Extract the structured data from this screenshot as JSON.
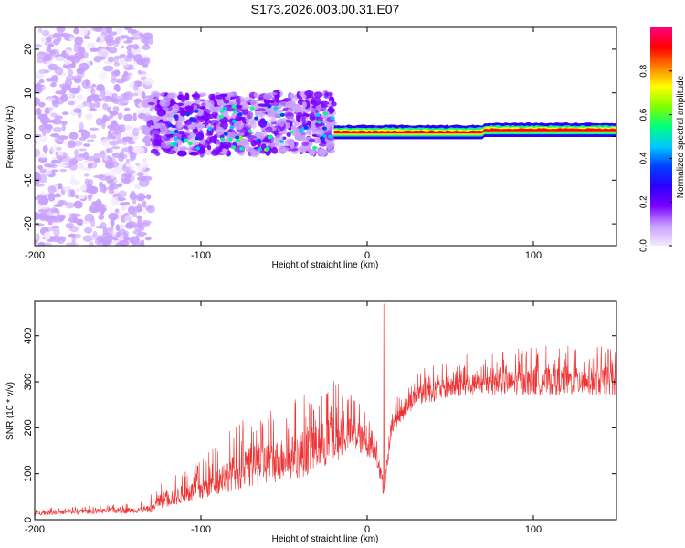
{
  "figure": {
    "title": "S173.2026.003.00.31.E07"
  },
  "chart_data": [
    {
      "type": "heatmap",
      "name": "spectrogram",
      "xlabel": "Height of straight line (km)",
      "ylabel": "Frequency (Hz)",
      "xlim": [
        -200,
        150
      ],
      "ylim": [
        -25,
        25
      ],
      "xticks": [
        -200,
        -100,
        0,
        100
      ],
      "yticks": [
        -20,
        -10,
        0,
        10,
        20
      ],
      "colorbar": {
        "label": "Normalized spectral amplitude",
        "range": [
          0.0,
          1.0
        ],
        "ticks": [
          0.0,
          0.2,
          0.4,
          0.6,
          0.8
        ],
        "tick_labels": [
          "0.0",
          "0.2",
          "0.4",
          "0.6",
          "0.8"
        ],
        "colors": [
          "#f3e8ff",
          "#c8a0ff",
          "#7a00ff",
          "#2a00ff",
          "#0040ff",
          "#00c8ff",
          "#00ff80",
          "#80ff00",
          "#ffff00",
          "#ff8000",
          "#ff0000",
          "#ff0080"
        ]
      },
      "description_bands": [
        {
          "x_from": -200,
          "x_to": -130,
          "y_center": 0,
          "y_spread": 25,
          "amplitude": 0.1
        },
        {
          "x_from": -130,
          "x_to": -20,
          "y_center": 3,
          "y_spread": 7,
          "amplitude": 0.18
        },
        {
          "x_from": -20,
          "x_to": 150,
          "y_center": 1,
          "y_spread": 1,
          "amplitude": 0.9
        }
      ]
    },
    {
      "type": "line",
      "name": "snr",
      "xlabel": "Height of straight line (km)",
      "ylabel": "SNR (10 * v/v)",
      "xlim": [
        -200,
        150
      ],
      "ylim": [
        0,
        475
      ],
      "xticks": [
        -200,
        -100,
        0,
        100
      ],
      "yticks": [
        0,
        100,
        200,
        300,
        400
      ],
      "color": "#ee3333",
      "envelope": [
        {
          "x": -200,
          "base": 10,
          "amp": 15
        },
        {
          "x": -130,
          "base": 15,
          "amp": 25
        },
        {
          "x": -125,
          "base": 25,
          "amp": 60
        },
        {
          "x": -100,
          "base": 40,
          "amp": 90
        },
        {
          "x": -85,
          "base": 60,
          "amp": 130
        },
        {
          "x": -70,
          "base": 70,
          "amp": 160
        },
        {
          "x": -40,
          "base": 90,
          "amp": 180
        },
        {
          "x": -20,
          "base": 120,
          "amp": 190
        },
        {
          "x": -10,
          "base": 150,
          "amp": 130
        },
        {
          "x": 5,
          "base": 130,
          "amp": 90
        },
        {
          "x": 10,
          "base": 50,
          "amp": 40
        },
        {
          "x": 15,
          "base": 190,
          "amp": 60
        },
        {
          "x": 30,
          "base": 250,
          "amp": 80
        },
        {
          "x": 60,
          "base": 270,
          "amp": 80
        },
        {
          "x": 100,
          "base": 270,
          "amp": 110
        },
        {
          "x": 150,
          "base": 270,
          "amp": 110
        }
      ],
      "peaks": [
        {
          "x": 10,
          "y": 470
        },
        {
          "x": -130,
          "y": 55
        },
        {
          "x": 60,
          "y": 360
        }
      ]
    }
  ]
}
